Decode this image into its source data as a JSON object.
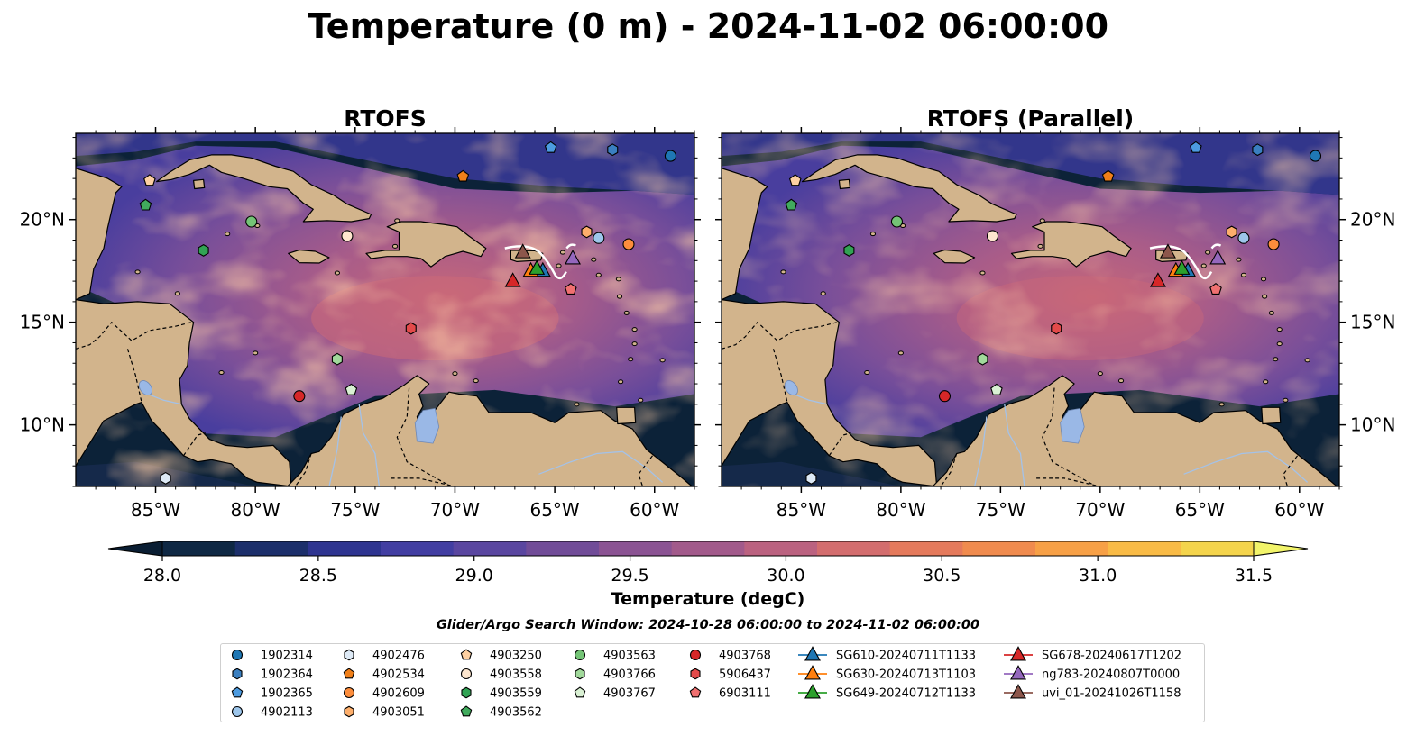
{
  "figure": {
    "title": "Temperature (0 m) - 2024-11-02 06:00:00",
    "search_window": "Glider/Argo Search Window: 2024-10-28 06:00:00 to 2024-11-02 06:00:00"
  },
  "maps": [
    {
      "title": "RTOFS"
    },
    {
      "title": "RTOFS (Parallel)"
    }
  ],
  "map_extent": {
    "lon": [
      -89,
      -58
    ],
    "lat": [
      7,
      24.2
    ]
  },
  "lon_ticks": [
    {
      "value": -85,
      "label": "85°W"
    },
    {
      "value": -80,
      "label": "80°W"
    },
    {
      "value": -75,
      "label": "75°W"
    },
    {
      "value": -70,
      "label": "70°W"
    },
    {
      "value": -65,
      "label": "65°W"
    },
    {
      "value": -60,
      "label": "60°W"
    }
  ],
  "lat_ticks": [
    {
      "value": 10,
      "label": "10°N"
    },
    {
      "value": 15,
      "label": "15°N"
    },
    {
      "value": 20,
      "label": "20°N"
    }
  ],
  "colorbar": {
    "label": "Temperature (degC)",
    "min": 28.0,
    "max": 31.5,
    "ticks": [
      "28.0",
      "28.5",
      "29.0",
      "29.5",
      "30.0",
      "30.5",
      "31.0",
      "31.5"
    ],
    "colors": [
      "#0f2844",
      "#1c2f6b",
      "#2e3490",
      "#423ea2",
      "#5a46a0",
      "#714c98",
      "#8b5393",
      "#a25a8b",
      "#bb6280",
      "#d36d6e",
      "#e57a5c",
      "#f08b4e",
      "#f7a046",
      "#f9bb46",
      "#f4d44c"
    ],
    "under_color": "#0a1e33",
    "over_color": "#f2f46a"
  },
  "colors": {
    "land": "#d2b48c",
    "lake": "#9ab8e6",
    "river": "#a4c2e8",
    "deep_ocean": "#0c2238"
  },
  "stations": [
    {
      "id": "1902314",
      "marker": "circle",
      "color": "#1f77b4",
      "lon": -59.2,
      "lat": 23.1
    },
    {
      "id": "1902364",
      "marker": "hexagon",
      "color": "#3a7fc0",
      "lon": -62.1,
      "lat": 23.4
    },
    {
      "id": "1902365",
      "marker": "pentagon",
      "color": "#4c9be0",
      "lon": -65.2,
      "lat": 23.5
    },
    {
      "id": "4902113",
      "marker": "circle",
      "color": "#9dc6eb",
      "lon": -62.8,
      "lat": 19.1
    },
    {
      "id": "4902476",
      "marker": "hexagon",
      "color": "#deeaf6",
      "lon": -84.5,
      "lat": 7.4
    },
    {
      "id": "4902534",
      "marker": "pentagon",
      "color": "#f07f19",
      "lon": -69.6,
      "lat": 22.1
    },
    {
      "id": "4902609",
      "marker": "circle",
      "color": "#fd8d3c",
      "lon": -61.3,
      "lat": 18.8
    },
    {
      "id": "4903051",
      "marker": "hexagon",
      "color": "#fdae6b",
      "lon": -63.4,
      "lat": 19.4
    },
    {
      "id": "4903250",
      "marker": "pentagon",
      "color": "#fdd0a2",
      "lon": -85.3,
      "lat": 21.9
    },
    {
      "id": "4903558",
      "marker": "circle",
      "color": "#fee6ce",
      "lon": -75.4,
      "lat": 19.2
    },
    {
      "id": "4903559",
      "marker": "hexagon",
      "color": "#31a354",
      "lon": -82.6,
      "lat": 18.5
    },
    {
      "id": "4903562",
      "marker": "pentagon",
      "color": "#41ab5d",
      "lon": -85.5,
      "lat": 20.7
    },
    {
      "id": "4903563",
      "marker": "circle",
      "color": "#74c476",
      "lon": -80.2,
      "lat": 19.9
    },
    {
      "id": "4903766",
      "marker": "hexagon",
      "color": "#a1d99b",
      "lon": -75.9,
      "lat": 13.2
    },
    {
      "id": "4903767",
      "marker": "pentagon",
      "color": "#d9f0d3",
      "lon": -75.2,
      "lat": 11.7
    },
    {
      "id": "4903768",
      "marker": "circle",
      "color": "#d62728",
      "lon": -77.8,
      "lat": 11.4
    },
    {
      "id": "5906437",
      "marker": "hexagon",
      "color": "#e34a4a",
      "lon": -72.2,
      "lat": 14.7
    },
    {
      "id": "6903111",
      "marker": "pentagon",
      "color": "#f07070",
      "lon": -64.2,
      "lat": 16.6
    }
  ],
  "gliders": [
    {
      "id": "SG610-20240711T1133",
      "color": "#1f77b4",
      "lon": -65.6,
      "lat": 17.5
    },
    {
      "id": "SG630-20240713T1103",
      "color": "#ff7f0e",
      "lon": -66.2,
      "lat": 17.5
    },
    {
      "id": "SG649-20240712T1133",
      "color": "#2ca02c",
      "lon": -65.9,
      "lat": 17.6
    },
    {
      "id": "SG678-20240617T1202",
      "color": "#d62728",
      "lon": -67.1,
      "lat": 17.0
    },
    {
      "id": "ng783-20240807T0000",
      "color": "#9467bd",
      "lon": -64.1,
      "lat": 18.1
    },
    {
      "id": "uvi_01-20241026T1158",
      "color": "#8c564b",
      "lon": -66.6,
      "lat": 18.4
    }
  ]
}
